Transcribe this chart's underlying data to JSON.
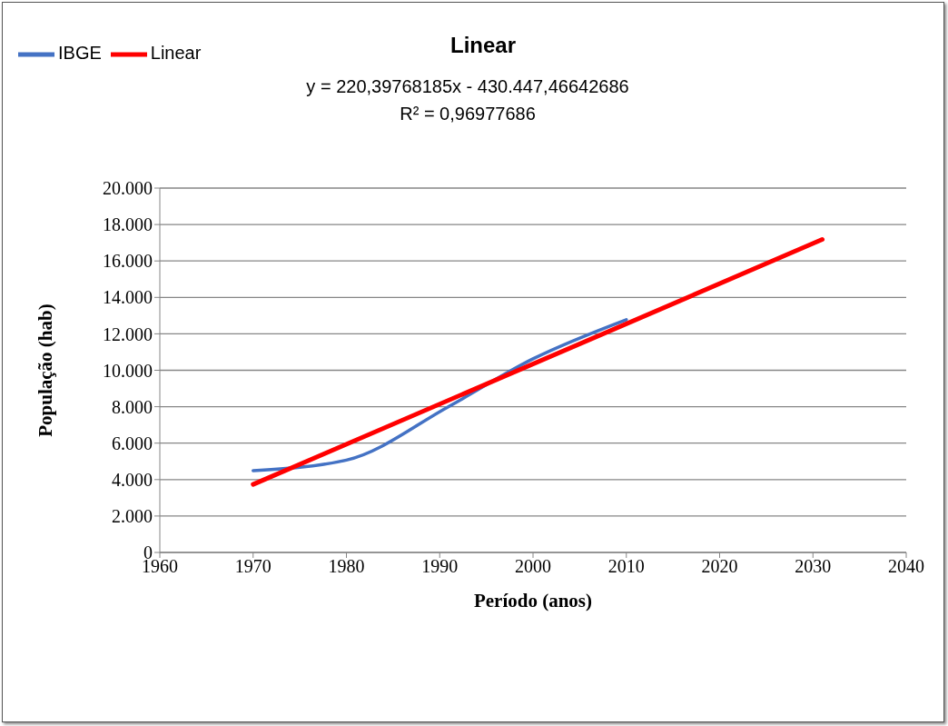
{
  "chart_data": {
    "type": "line",
    "title": "Linear",
    "subtitle": "y = 220,39768185x - 430.447,46642686\nR² = 0,96977686",
    "xlabel": "Período (anos)",
    "ylabel": "População (hab)",
    "series": [
      {
        "name": "IBGE",
        "color": "#4472c4",
        "x": [
          1970,
          1980,
          1991,
          2000,
          2010
        ],
        "values": [
          4490,
          5070,
          8020,
          10630,
          12780
        ]
      },
      {
        "name": "Linear",
        "color": "#ff0000",
        "type": "line",
        "x": [
          1970,
          2031
        ],
        "values": [
          3736,
          17180
        ]
      }
    ],
    "xlim": [
      1960,
      2040
    ],
    "xticks": [
      1960,
      1970,
      1980,
      1990,
      2000,
      2010,
      2020,
      2030,
      2040
    ],
    "ylim": [
      0,
      20000
    ],
    "yticks": [
      {
        "value": 0,
        "label": "0"
      },
      {
        "value": 2000,
        "label": "2.000"
      },
      {
        "value": 4000,
        "label": "4.000"
      },
      {
        "value": 6000,
        "label": "6.000"
      },
      {
        "value": 8000,
        "label": "8.000"
      },
      {
        "value": 10000,
        "label": "10.000"
      },
      {
        "value": 12000,
        "label": "12.000"
      },
      {
        "value": 14000,
        "label": "14.000"
      },
      {
        "value": 16000,
        "label": "16.000"
      },
      {
        "value": 18000,
        "label": "18.000"
      },
      {
        "value": 20000,
        "label": "20.000"
      }
    ],
    "grid": "y",
    "legend": "top left",
    "marker": "none",
    "line_style": "solid"
  }
}
